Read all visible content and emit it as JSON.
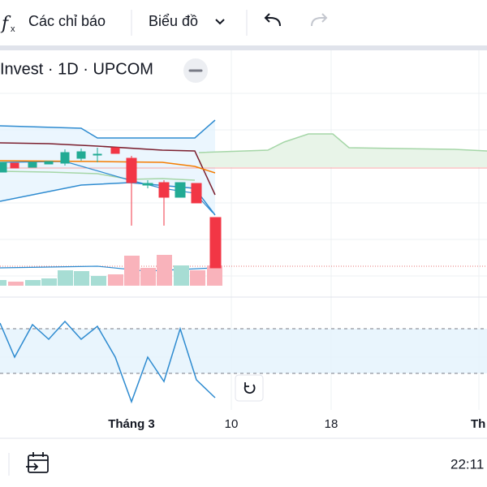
{
  "toolbar": {
    "indicators": "Các chỉ báo",
    "chart_type": "Biểu đồ"
  },
  "legend": {
    "symbol": "Invest · 1D · UPCOM"
  },
  "time_axis": {
    "labels": [
      "Tháng 3",
      "10",
      "18",
      "Th"
    ]
  },
  "footer": {
    "clock": "22:11"
  }
}
